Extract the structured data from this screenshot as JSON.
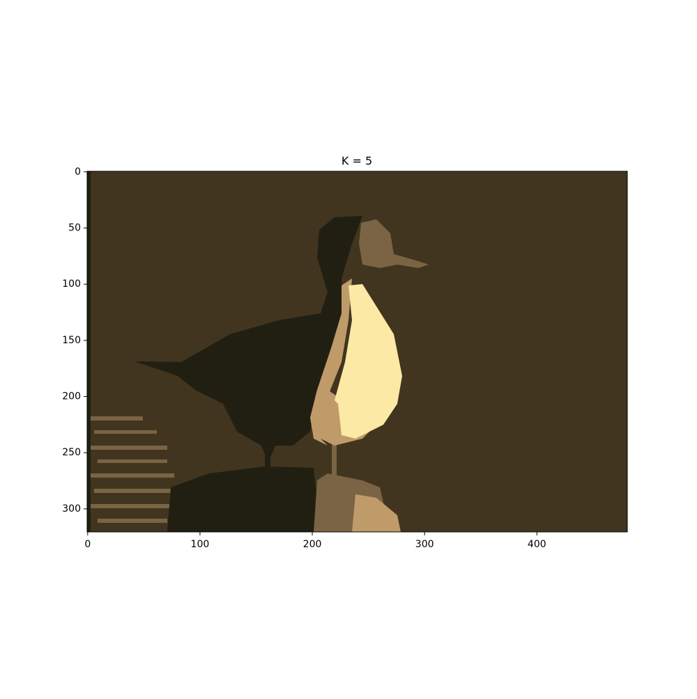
{
  "chart_data": {
    "type": "image",
    "title": "K = 5",
    "colors": [
      "#41351f",
      "#201f12",
      "#7b6443",
      "#c09b6a",
      "#fbe9a5"
    ],
    "xlim": [
      -0.5,
      480.5
    ],
    "ylim": [
      320.5,
      -0.5
    ],
    "xticks": [
      0,
      100,
      200,
      300,
      400
    ],
    "yticks": [
      0,
      50,
      100,
      150,
      200,
      250,
      300
    ]
  }
}
